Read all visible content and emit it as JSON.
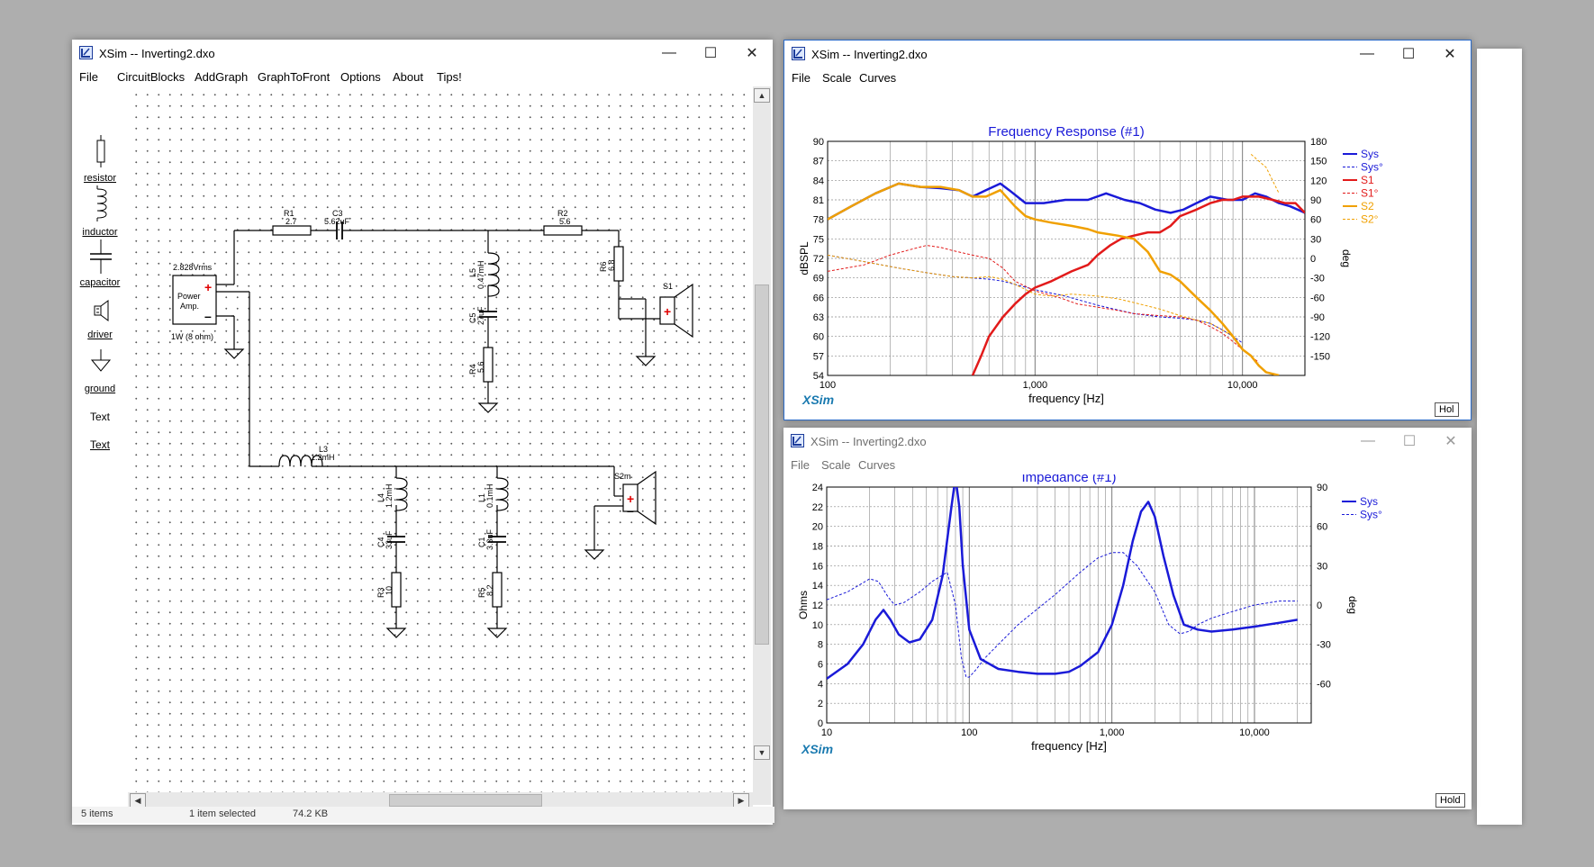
{
  "schematic_window": {
    "title": "XSim -- Inverting2.dxo",
    "menu": [
      "File",
      "CircuitBlocks",
      "AddGraph",
      "GraphToFront",
      "Options",
      "About",
      "Tips!"
    ],
    "toolbox": [
      {
        "label": "resistor",
        "icon": "resistor-icon"
      },
      {
        "label": "inductor",
        "icon": "inductor-icon"
      },
      {
        "label": "capacitor",
        "icon": "capacitor-icon"
      },
      {
        "label": "driver",
        "icon": "driver-icon"
      },
      {
        "label": "ground",
        "icon": "ground-icon"
      },
      {
        "label": "Text",
        "icon": "text-plain"
      },
      {
        "label": "Text",
        "icon": "text-underlined"
      }
    ],
    "amp": {
      "voltage": "2.828Vrms",
      "name1": "Power",
      "name2": "Amp.",
      "plus": "+",
      "minus": "–",
      "power": "1W (8 ohm)"
    },
    "components": {
      "R1": {
        "name": "R1",
        "value": "2.7"
      },
      "C3": {
        "name": "C3",
        "value": "5.62uF"
      },
      "R2": {
        "name": "R2",
        "value": "5.6"
      },
      "L5": {
        "name": "L5",
        "value": "0.47mH"
      },
      "C5": {
        "name": "C5",
        "value": "27uF"
      },
      "R4": {
        "name": "R4",
        "value": "5.6"
      },
      "R6": {
        "name": "R6",
        "value": "6.8"
      },
      "S1": {
        "name": "S1",
        "plus": "+"
      },
      "L3": {
        "name": "L3",
        "value": "1.2mH"
      },
      "L4": {
        "name": "L4",
        "value": "1.2mH"
      },
      "C4": {
        "name": "C4",
        "value": "33uF"
      },
      "R3": {
        "name": "R3",
        "value": "10"
      },
      "L1": {
        "name": "L1",
        "value": "0.1mH"
      },
      "C1": {
        "name": "C1",
        "value": "3.3uF"
      },
      "R5": {
        "name": "R5",
        "value": "8.2"
      },
      "S2": {
        "name": "S2m",
        "plus": "+",
        "minus": "–"
      }
    },
    "status": {
      "left": "5 items",
      "mid": "1 item selected",
      "size": "74.2 KB"
    }
  },
  "freq_window": {
    "title": "XSim -- Inverting2.dxo",
    "menu": [
      "File",
      "Scale",
      "Curves"
    ],
    "brand": "XSim",
    "hold": "Hol"
  },
  "imp_window": {
    "title": "XSim -- Inverting2.dxo",
    "menu": [
      "File",
      "Scale",
      "Curves"
    ],
    "brand": "XSim",
    "hold": "Hold"
  },
  "chart_data": [
    {
      "type": "line",
      "title": "Frequency Response (#1)",
      "xlabel": "frequency [Hz]",
      "ylabel": "dBSPL",
      "y2label": "deg",
      "xscale": "log",
      "xlim": [
        100,
        20000
      ],
      "ylim": [
        54,
        90
      ],
      "y2lim": [
        -180,
        180
      ],
      "xticks": [
        100,
        1000,
        10000
      ],
      "xtick_labels": [
        "100",
        "1,000",
        "10,000"
      ],
      "yticks": [
        54,
        57,
        60,
        63,
        66,
        69,
        72,
        75,
        78,
        81,
        84,
        87,
        90
      ],
      "y2ticks": [
        -150,
        -120,
        -90,
        -60,
        -30,
        0,
        30,
        60,
        90,
        120,
        150,
        180
      ],
      "legend_position": "right",
      "series": [
        {
          "name": "Sys",
          "color": "#1a1ad8",
          "width": 2.5,
          "dash": false,
          "axis": "y",
          "x": [
            100,
            130,
            170,
            220,
            280,
            350,
            430,
            500,
            580,
            680,
            750,
            900,
            1100,
            1400,
            1800,
            2200,
            2700,
            3200,
            3800,
            4500,
            5200,
            6000,
            7000,
            8500,
            10000,
            11500,
            13000,
            15000,
            17000,
            20000
          ],
          "y": [
            78,
            80,
            82,
            83.5,
            83,
            82.8,
            82.5,
            81.5,
            82.5,
            83.5,
            82.5,
            80.5,
            80.5,
            81,
            81,
            82,
            81,
            80.5,
            79.5,
            79,
            79.5,
            80.5,
            81.5,
            81,
            81,
            82,
            81.5,
            80.5,
            80,
            79
          ]
        },
        {
          "name": "Sys°",
          "color": "#1a1ad8",
          "width": 1,
          "dash": true,
          "axis": "y2",
          "x": [
            100,
            150,
            220,
            300,
            400,
            500,
            600,
            700,
            800,
            1000,
            1400,
            2000,
            3000,
            4000,
            5000,
            6000,
            7000,
            8000,
            9000,
            10000
          ],
          "y": [
            5,
            -5,
            -15,
            -22,
            -28,
            -30,
            -32,
            -35,
            -40,
            -48,
            -58,
            -72,
            -85,
            -90,
            -92,
            -95,
            -100,
            -110,
            -120,
            -130
          ]
        },
        {
          "name": "S1",
          "color": "#e21a1a",
          "width": 2.5,
          "dash": false,
          "axis": "y",
          "x": [
            500,
            550,
            600,
            700,
            800,
            900,
            1000,
            1200,
            1500,
            1800,
            2000,
            2300,
            2600,
            3000,
            3500,
            4000,
            4500,
            5000,
            6000,
            7000,
            8000,
            9000,
            10000,
            12000,
            14000,
            16000,
            18000,
            20000
          ],
          "y": [
            54,
            57,
            60,
            63,
            65,
            66.5,
            67.5,
            68.5,
            70,
            71,
            72.5,
            74,
            75,
            75.5,
            76,
            76,
            77,
            78.5,
            79.5,
            80.5,
            81,
            81,
            81.5,
            81.5,
            81,
            80.5,
            80.5,
            79
          ]
        },
        {
          "name": "S1°",
          "color": "#e21a1a",
          "width": 1,
          "dash": true,
          "axis": "y2",
          "x": [
            100,
            150,
            200,
            260,
            300,
            350,
            400,
            500,
            600,
            700,
            800,
            1000,
            1300,
            1600,
            2000,
            2500,
            3000,
            4000,
            5000,
            6000,
            7000,
            8000,
            9000,
            10000,
            12000
          ],
          "y": [
            -20,
            -10,
            5,
            15,
            20,
            17,
            12,
            5,
            0,
            -15,
            -35,
            -50,
            -60,
            -70,
            -75,
            -80,
            -85,
            -88,
            -90,
            -95,
            -105,
            -115,
            -128,
            -140,
            -160
          ]
        },
        {
          "name": "S2",
          "color": "#f0a000",
          "width": 2.5,
          "dash": false,
          "axis": "y",
          "x": [
            100,
            130,
            170,
            220,
            280,
            350,
            430,
            500,
            580,
            680,
            800,
            900,
            1000,
            1200,
            1500,
            1800,
            2000,
            2500,
            3000,
            3500,
            4000,
            4500,
            5000,
            6000,
            7000,
            8000,
            9000,
            10000,
            11000,
            12000,
            13000,
            15000
          ],
          "y": [
            78,
            80,
            82,
            83.5,
            83,
            83,
            82.5,
            81.5,
            81.5,
            82.5,
            80,
            78.5,
            78,
            77.5,
            77,
            76.5,
            76,
            75.5,
            75,
            73,
            70,
            69.5,
            68.5,
            66,
            64,
            62,
            60,
            58,
            57,
            55.5,
            54.5,
            54
          ]
        },
        {
          "name": "S2°",
          "color": "#f0a000",
          "width": 1,
          "dash": true,
          "axis": "y2",
          "x": [
            100,
            150,
            220,
            300,
            400,
            500,
            600,
            700,
            800,
            1000,
            1200,
            1500,
            2000,
            2500,
            3000,
            4000,
            5000,
            6000,
            7000,
            8000,
            9000,
            10000,
            11000,
            13000,
            15000
          ],
          "y": [
            5,
            -5,
            -15,
            -22,
            -28,
            -30,
            -28,
            -32,
            -40,
            -55,
            -58,
            -55,
            -58,
            -62,
            -68,
            -78,
            -88,
            -95,
            -100,
            -110,
            -120,
            -140,
            160,
            140,
            100
          ]
        }
      ]
    },
    {
      "type": "line",
      "title": "Impedance (#1)",
      "xlabel": "frequency [Hz]",
      "ylabel": "Ohms",
      "y2label": "deg",
      "xscale": "log",
      "xlim": [
        10,
        25000
      ],
      "ylim": [
        0,
        24
      ],
      "y2lim": [
        -90,
        90
      ],
      "xticks": [
        10,
        100,
        1000,
        10000
      ],
      "xtick_labels": [
        "10",
        "100",
        "1,000",
        "10,000"
      ],
      "yticks": [
        0,
        2,
        4,
        6,
        8,
        10,
        12,
        14,
        16,
        18,
        20,
        22,
        24
      ],
      "y2ticks": [
        -60,
        -30,
        0,
        30,
        60,
        90
      ],
      "legend_position": "top-right",
      "series": [
        {
          "name": "Sys",
          "color": "#1a1ad8",
          "width": 2.5,
          "dash": false,
          "axis": "y",
          "x": [
            10,
            14,
            18,
            22,
            25,
            28,
            32,
            38,
            45,
            55,
            65,
            75,
            80,
            85,
            90,
            100,
            120,
            160,
            220,
            300,
            400,
            500,
            600,
            800,
            1000,
            1200,
            1400,
            1600,
            1800,
            2000,
            2300,
            2700,
            3200,
            4000,
            5000,
            7000,
            10000,
            15000,
            20000
          ],
          "y": [
            4.5,
            6,
            8,
            10.5,
            11.5,
            10.5,
            9,
            8.2,
            8.5,
            10.5,
            15,
            22,
            25,
            22,
            16,
            9.5,
            6.5,
            5.5,
            5.2,
            5,
            5,
            5.2,
            5.8,
            7.2,
            10,
            14,
            18.5,
            21.5,
            22.5,
            21,
            17,
            13,
            10,
            9.5,
            9.3,
            9.5,
            9.8,
            10.2,
            10.5
          ]
        },
        {
          "name": "Sys°",
          "color": "#1a1ad8",
          "width": 1,
          "dash": true,
          "axis": "y2",
          "x": [
            10,
            14,
            18,
            20,
            23,
            27,
            30,
            35,
            45,
            55,
            70,
            80,
            88,
            95,
            100,
            110,
            130,
            160,
            220,
            300,
            400,
            600,
            800,
            1000,
            1200,
            1500,
            2000,
            2500,
            3000,
            3500,
            4000,
            5000,
            7000,
            10000,
            15000,
            20000
          ],
          "y": [
            4,
            10,
            17,
            20,
            18,
            6,
            0,
            2,
            10,
            18,
            25,
            0,
            -40,
            -55,
            -55,
            -50,
            -40,
            -30,
            -15,
            -3,
            8,
            25,
            36,
            40,
            40,
            30,
            10,
            -15,
            -22,
            -20,
            -15,
            -10,
            -5,
            0,
            3,
            3
          ]
        }
      ]
    }
  ]
}
